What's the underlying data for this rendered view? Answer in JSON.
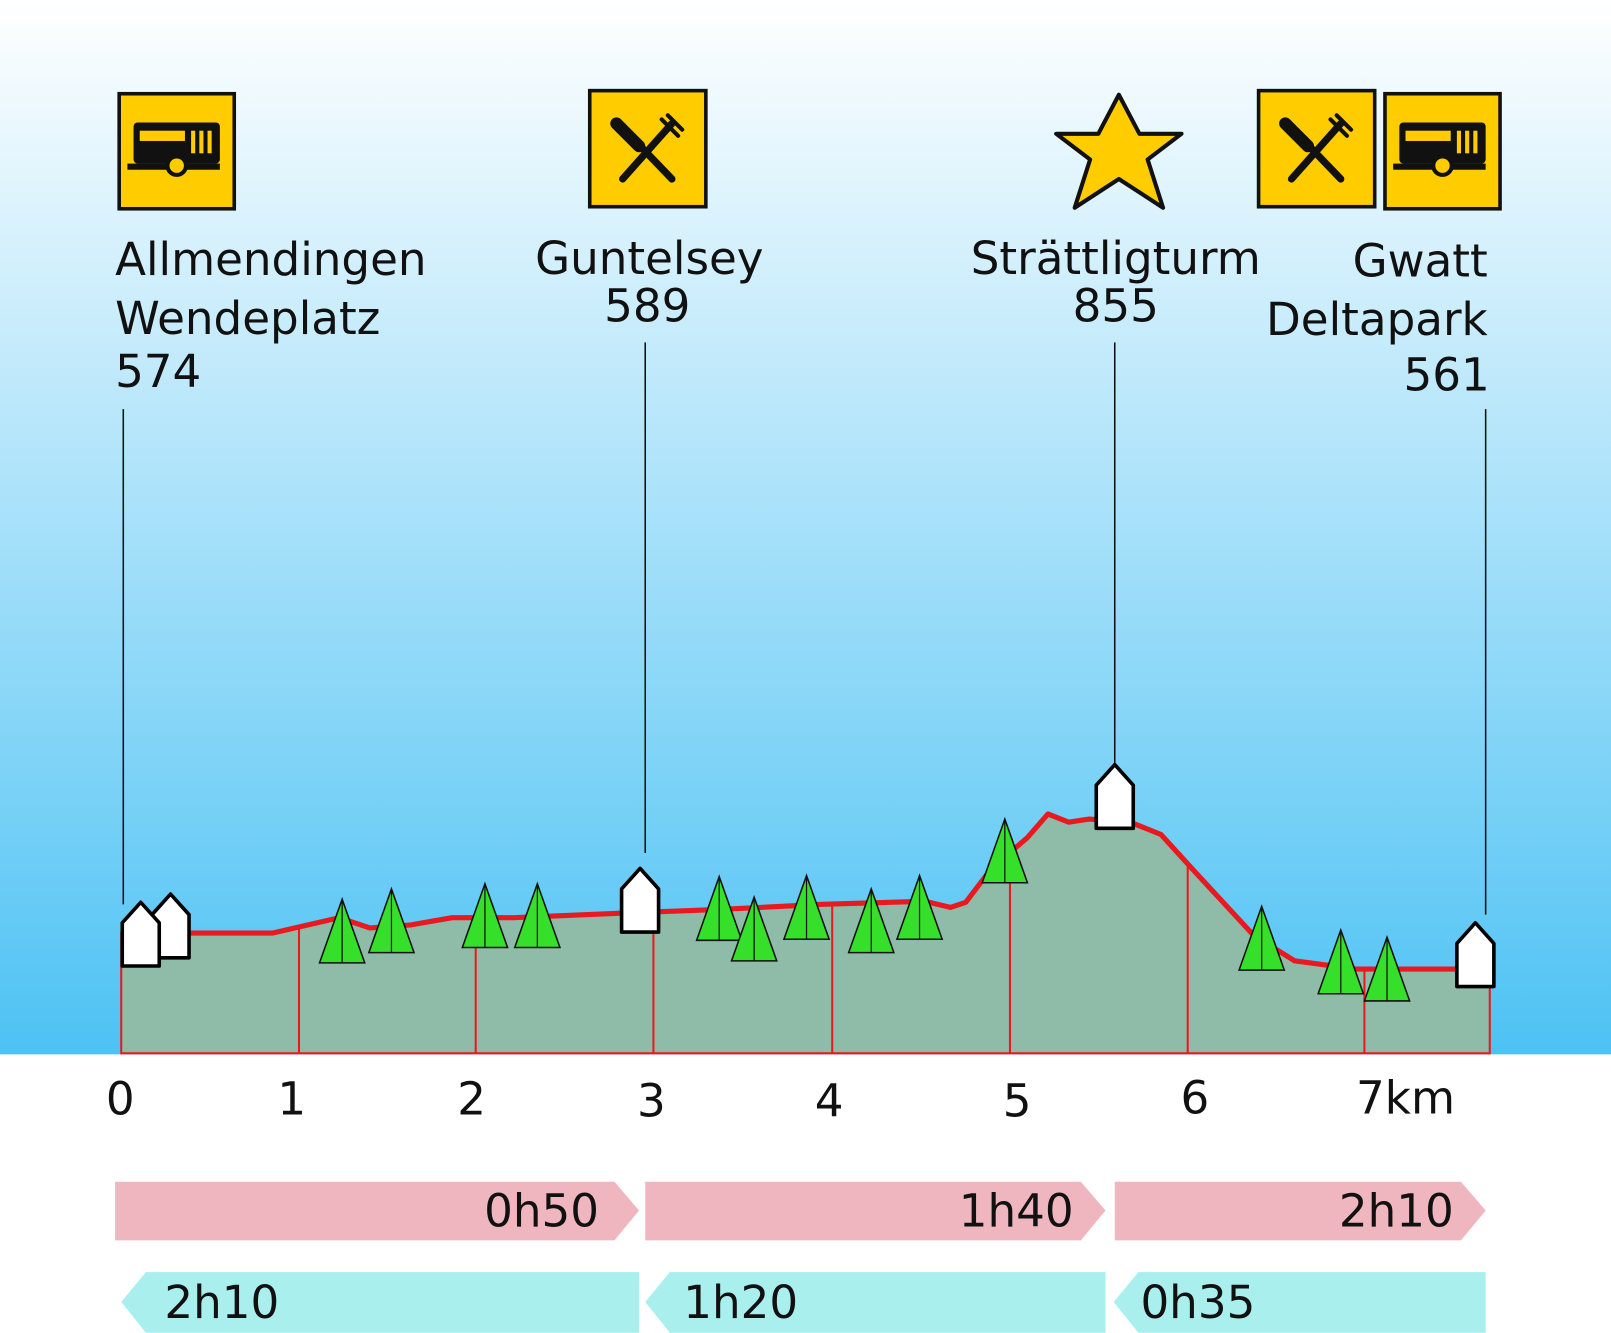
{
  "stops": [
    {
      "name": [
        "Allmendingen",
        "Wendeplatz"
      ],
      "elevation": 574
    },
    {
      "name": [
        "Guntelsey"
      ],
      "elevation": 589
    },
    {
      "name": [
        "Strättligturm"
      ],
      "elevation": 855
    },
    {
      "name": [
        "Gwatt",
        "Deltapark"
      ],
      "elevation": 561
    }
  ],
  "km_labels": [
    "0",
    "1",
    "2",
    "3",
    "4",
    "5",
    "6",
    "7km"
  ],
  "forward_times": [
    "0h50",
    "1h40",
    "2h10"
  ],
  "backward_times": [
    "2h10",
    "1h20",
    "0h35"
  ]
}
